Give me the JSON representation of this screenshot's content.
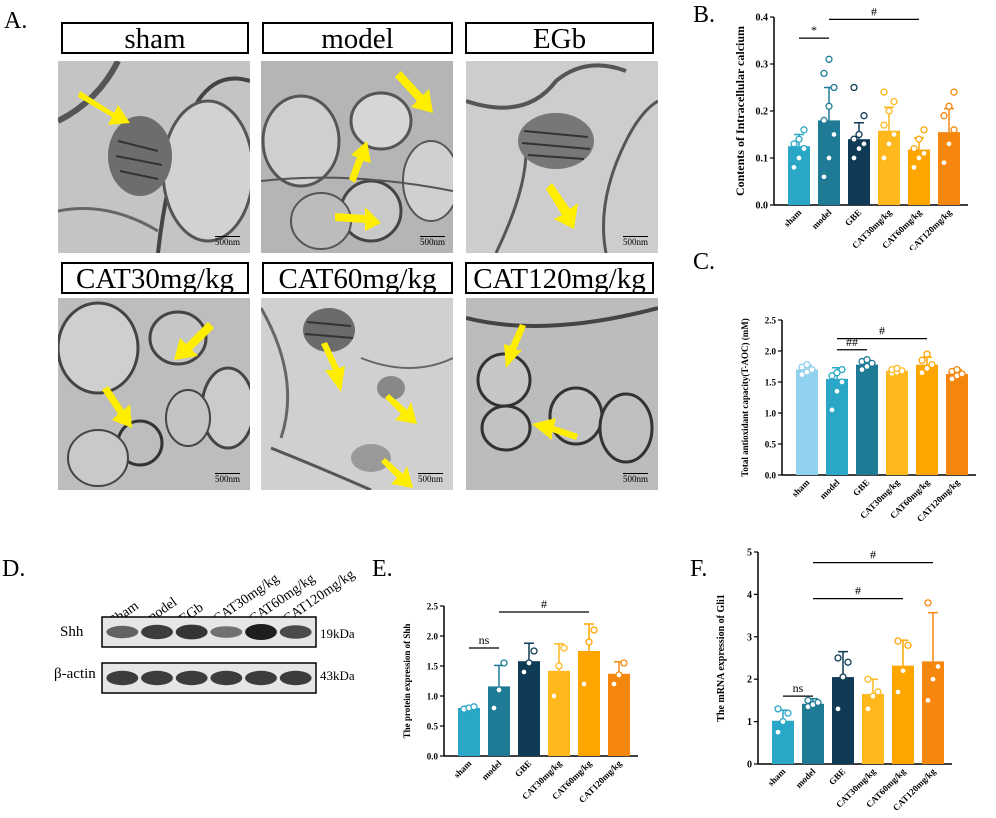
{
  "panels": {
    "a": "A.",
    "b": "B.",
    "c": "C.",
    "d": "D.",
    "e": "E.",
    "f": "F."
  },
  "micrographs": {
    "labels": [
      "sham",
      "model",
      "EGb",
      "CAT30mg/kg",
      "CAT60mg/kg",
      "CAT120mg/kg"
    ],
    "scale_bar": "500nm"
  },
  "colors": {
    "sham": "#2aa6c6",
    "sham_light": "#8fd1ee",
    "model": "#1e7a95",
    "gbe": "#0f3b56",
    "cat30": "#ffb81c",
    "cat60": "#ffa500",
    "cat120": "#f5870f",
    "arrow": "#ffee00"
  },
  "blot": {
    "lanes": [
      "Sham",
      "model",
      "EGb",
      "CAT30mg/kg",
      "CAT60mg/kg",
      "CAT120mg/kg"
    ],
    "rows": [
      {
        "name": "Shh",
        "kda": "19kDa",
        "intensity": [
          0.55,
          0.8,
          0.85,
          0.45,
          1.0,
          0.7
        ]
      },
      {
        "name": "β-actin",
        "kda": "43kDa",
        "intensity": [
          0.8,
          0.8,
          0.8,
          0.8,
          0.8,
          0.8
        ]
      }
    ]
  },
  "chart_data": [
    {
      "id": "B",
      "type": "bar",
      "title": "",
      "categories": [
        "sham",
        "model",
        "GBE",
        "CAT30mg/kg",
        "CAT60mg/kg",
        "CAT120mg/kg"
      ],
      "values": [
        0.125,
        0.18,
        0.14,
        0.158,
        0.118,
        0.155
      ],
      "errors": [
        0.025,
        0.07,
        0.035,
        0.05,
        0.025,
        0.05
      ],
      "points": [
        [
          0.08,
          0.1,
          0.12,
          0.13,
          0.14,
          0.16
        ],
        [
          0.06,
          0.1,
          0.15,
          0.18,
          0.21,
          0.25,
          0.28,
          0.31
        ],
        [
          0.1,
          0.12,
          0.13,
          0.14,
          0.15,
          0.19,
          0.25
        ],
        [
          0.1,
          0.13,
          0.15,
          0.17,
          0.2,
          0.22,
          0.24
        ],
        [
          0.08,
          0.1,
          0.11,
          0.12,
          0.14,
          0.16
        ],
        [
          0.09,
          0.13,
          0.16,
          0.19,
          0.21,
          0.24
        ]
      ],
      "xlabel": "",
      "ylabel": "Contents of Intracellular calcium",
      "ylim": [
        0,
        0.4
      ],
      "yticks": [
        "0.0",
        "0.1",
        "0.2",
        "0.3",
        "0.4"
      ],
      "yticks_values": [
        0,
        0.1,
        0.2,
        0.3,
        0.4
      ],
      "annotations": [
        {
          "from": 0,
          "to": 1,
          "label": "*",
          "y": 0.355
        },
        {
          "from": 1,
          "to": 4,
          "label": "#",
          "y": 0.395
        }
      ]
    },
    {
      "id": "C",
      "type": "bar",
      "title": "",
      "categories": [
        "sham",
        "model",
        "GBE",
        "CAT30mg/kg",
        "CAT60mg/kg",
        "CAT120mg/kg"
      ],
      "values": [
        1.7,
        1.55,
        1.78,
        1.68,
        1.78,
        1.63
      ],
      "errors": [
        0.07,
        0.18,
        0.06,
        0.04,
        0.12,
        0.07
      ],
      "points": [
        [
          1.62,
          1.66,
          1.7,
          1.74,
          1.78
        ],
        [
          1.05,
          1.35,
          1.5,
          1.6,
          1.65,
          1.7
        ],
        [
          1.7,
          1.75,
          1.8,
          1.83,
          1.86
        ],
        [
          1.64,
          1.66,
          1.68,
          1.7,
          1.72
        ],
        [
          1.65,
          1.72,
          1.78,
          1.85,
          1.95
        ],
        [
          1.55,
          1.6,
          1.63,
          1.67,
          1.7
        ]
      ],
      "xlabel": "",
      "ylabel": "Total antioxidant capacity(T-AOC) (mM)",
      "ylim": [
        0,
        2.5
      ],
      "yticks": [
        "0.0",
        "0.5",
        "1.0",
        "1.5",
        "2.0",
        "2.5"
      ],
      "yticks_values": [
        0,
        0.5,
        1.0,
        1.5,
        2.0,
        2.5
      ],
      "annotations": [
        {
          "from": 1,
          "to": 2,
          "label": "##",
          "y": 2.02
        },
        {
          "from": 1,
          "to": 4,
          "label": "#",
          "y": 2.2
        }
      ]
    },
    {
      "id": "E",
      "type": "bar",
      "title": "",
      "categories": [
        "sham",
        "model",
        "GBE",
        "CAT30mg/kg",
        "CAT60mg/kg",
        "CAT120mg/kg"
      ],
      "values": [
        0.8,
        1.16,
        1.58,
        1.42,
        1.75,
        1.37
      ],
      "errors": [
        0.03,
        0.35,
        0.3,
        0.45,
        0.45,
        0.2
      ],
      "points": [
        [
          0.78,
          0.8,
          0.82
        ],
        [
          0.8,
          1.1,
          1.55
        ],
        [
          1.4,
          1.55,
          1.75
        ],
        [
          1.0,
          1.5,
          1.8
        ],
        [
          1.2,
          1.9,
          2.1
        ],
        [
          1.2,
          1.35,
          1.55
        ]
      ],
      "xlabel": "",
      "ylabel": "The protein expression of Shh",
      "ylim": [
        0,
        2.5
      ],
      "yticks": [
        "0.0",
        "0.5",
        "1.0",
        "1.5",
        "2.0",
        "2.5"
      ],
      "yticks_values": [
        0,
        0.5,
        1.0,
        1.5,
        2.0,
        2.5
      ],
      "annotations": [
        {
          "from": 0,
          "to": 1,
          "label": "ns",
          "y": 1.8
        },
        {
          "from": 1,
          "to": 4,
          "label": "#",
          "y": 2.4
        }
      ]
    },
    {
      "id": "F",
      "type": "bar",
      "title": "",
      "categories": [
        "sham",
        "model",
        "GBE",
        "CAT30mg/kg",
        "CAT60mg/kg",
        "CAT120mg/kg"
      ],
      "values": [
        1.02,
        1.42,
        2.05,
        1.65,
        2.32,
        2.42
      ],
      "errors": [
        0.25,
        0.12,
        0.6,
        0.35,
        0.6,
        1.15
      ],
      "points": [
        [
          0.75,
          1.0,
          1.2,
          1.3
        ],
        [
          1.35,
          1.4,
          1.45,
          1.5
        ],
        [
          1.3,
          2.05,
          2.4,
          2.5
        ],
        [
          1.3,
          1.6,
          1.7,
          2.0
        ],
        [
          1.7,
          2.2,
          2.8,
          2.9
        ],
        [
          1.5,
          2.0,
          2.3,
          3.8
        ]
      ],
      "xlabel": "",
      "ylabel": "The mRNA expression of Gli1",
      "ylim": [
        0,
        5
      ],
      "yticks": [
        "0",
        "1",
        "2",
        "3",
        "4",
        "5"
      ],
      "yticks_values": [
        0,
        1,
        2,
        3,
        4,
        5
      ],
      "annotations": [
        {
          "from": 0,
          "to": 1,
          "label": "ns",
          "y": 1.6
        },
        {
          "from": 1,
          "to": 4,
          "label": "#",
          "y": 3.9
        },
        {
          "from": 1,
          "to": 5,
          "label": "#",
          "y": 4.75
        }
      ]
    }
  ]
}
